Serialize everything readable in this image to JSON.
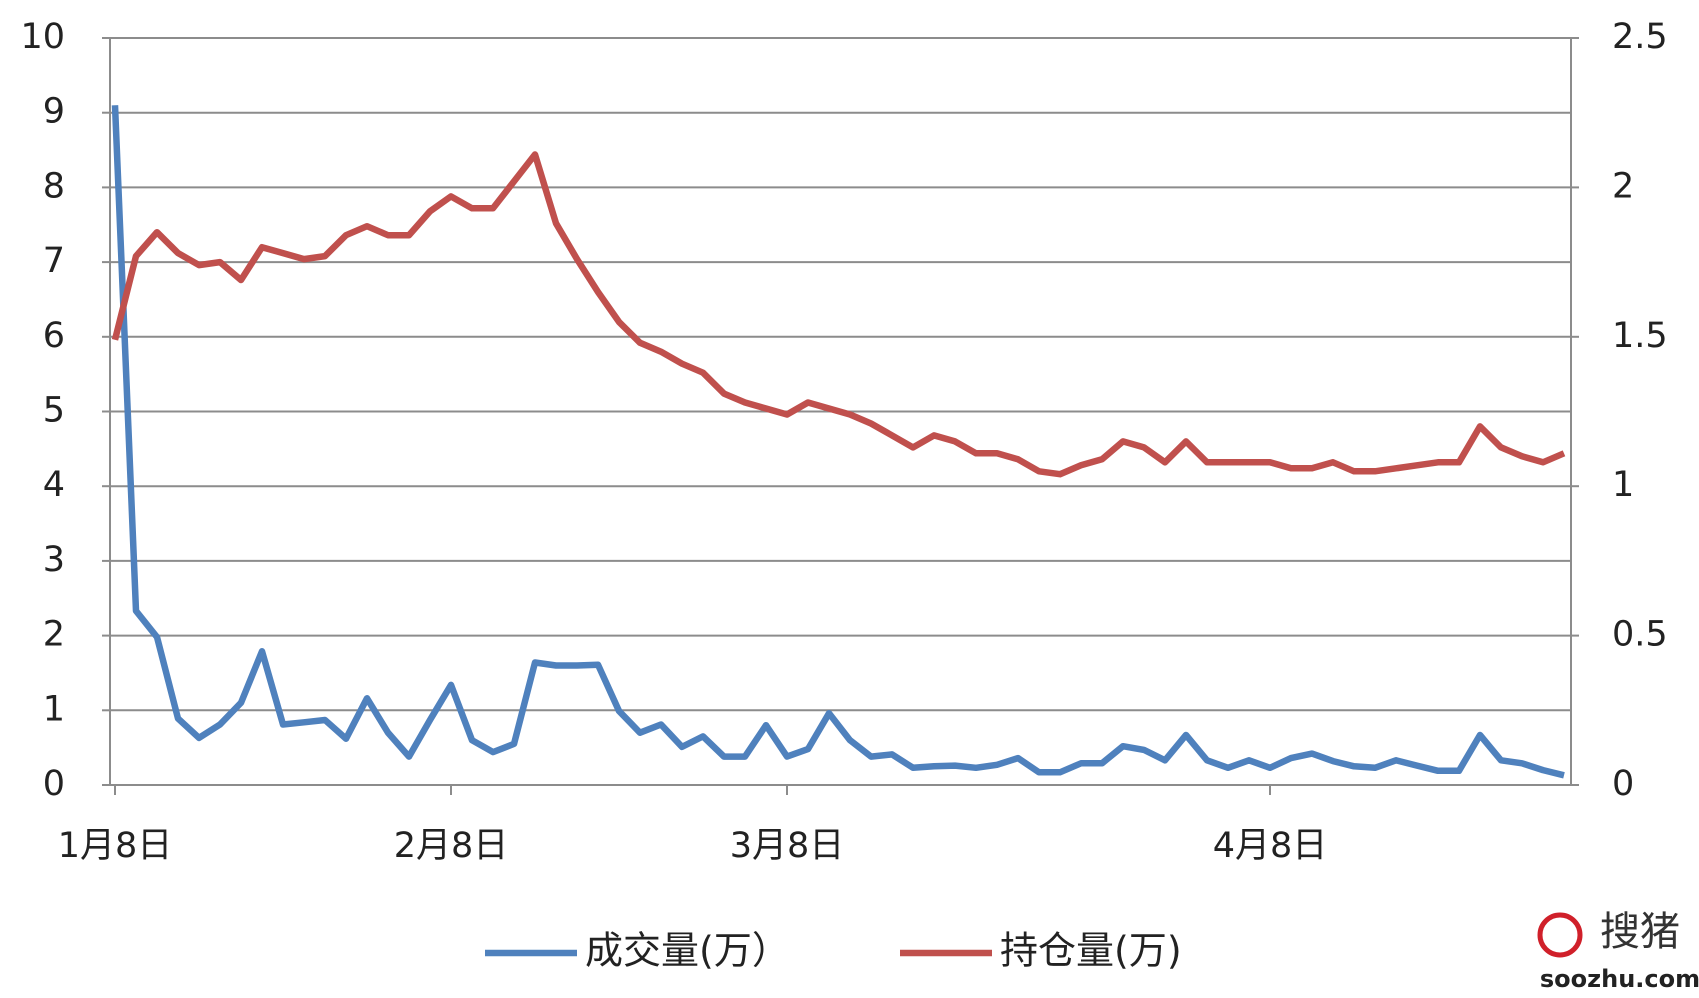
{
  "chart_data": {
    "type": "line",
    "categories": [
      "1月8日",
      null,
      null,
      null,
      null,
      null,
      null,
      null,
      null,
      null,
      null,
      null,
      null,
      null,
      null,
      null,
      "2月8日",
      null,
      null,
      null,
      null,
      null,
      null,
      null,
      null,
      null,
      null,
      null,
      null,
      null,
      null,
      null,
      "3月8日",
      null,
      null,
      null,
      null,
      null,
      null,
      null,
      null,
      null,
      null,
      null,
      null,
      null,
      null,
      null,
      null,
      null,
      null,
      null,
      null,
      null,
      null,
      "4月8日",
      null,
      null,
      null,
      null,
      null,
      null,
      null,
      null,
      null,
      null,
      null,
      null,
      null,
      null
    ],
    "series": [
      {
        "name": "成交量(万）",
        "color": "#4f81bd",
        "axis": "y",
        "values": [
          9.1,
          2.33,
          1.98,
          0.89,
          0.63,
          0.81,
          1.1,
          1.79,
          0.81,
          0.84,
          0.87,
          0.62,
          1.16,
          0.7,
          0.38,
          0.87,
          1.34,
          0.6,
          0.44,
          0.55,
          1.64,
          1.6,
          1.6,
          1.61,
          0.99,
          0.7,
          0.81,
          0.51,
          0.65,
          0.38,
          0.38,
          0.8,
          0.38,
          0.48,
          0.96,
          0.6,
          0.38,
          0.41,
          0.23,
          0.25,
          0.26,
          0.23,
          0.27,
          0.36,
          0.17,
          0.17,
          0.29,
          0.29,
          0.52,
          0.47,
          0.33,
          0.67,
          0.33,
          0.23,
          0.33,
          0.23,
          0.36,
          0.42,
          0.32,
          0.25,
          0.23,
          0.33,
          0.26,
          0.19,
          0.19,
          0.67,
          0.33,
          0.29,
          0.2,
          0.13
        ]
      },
      {
        "name": "持仓量(万)",
        "color": "#c0504d",
        "axis": "y2",
        "values": [
          1.49,
          1.77,
          1.85,
          1.78,
          1.74,
          1.75,
          1.69,
          1.8,
          1.78,
          1.76,
          1.77,
          1.84,
          1.87,
          1.84,
          1.84,
          1.92,
          1.97,
          1.93,
          1.93,
          2.02,
          2.11,
          1.88,
          1.76,
          1.65,
          1.55,
          1.48,
          1.45,
          1.41,
          1.38,
          1.31,
          1.28,
          1.26,
          1.24,
          1.28,
          1.26,
          1.24,
          1.21,
          1.17,
          1.13,
          1.17,
          1.15,
          1.11,
          1.11,
          1.09,
          1.05,
          1.04,
          1.07,
          1.09,
          1.15,
          1.13,
          1.08,
          1.15,
          1.08,
          1.08,
          1.08,
          1.08,
          1.06,
          1.06,
          1.08,
          1.05,
          1.05,
          1.06,
          1.07,
          1.08,
          1.08,
          1.2,
          1.13,
          1.1,
          1.08,
          1.11
        ]
      }
    ],
    "ylim": [
      0,
      10
    ],
    "yticks": [
      0,
      1,
      2,
      3,
      4,
      5,
      6,
      7,
      8,
      9,
      10
    ],
    "y2lim": [
      0,
      2.5
    ],
    "y2ticks": [
      0,
      0.5,
      1,
      1.5,
      2,
      2.5
    ],
    "grid": true,
    "legend": "bottom",
    "watermark": {
      "text": "搜猪",
      "url": "soozhu.com"
    }
  }
}
